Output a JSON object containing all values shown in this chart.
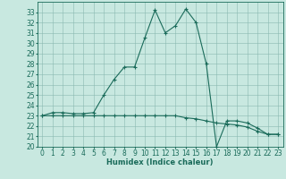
{
  "xlabel": "Humidex (Indice chaleur)",
  "background_color": "#c8e8e0",
  "line_color": "#1a6b5a",
  "x_values": [
    0,
    1,
    2,
    3,
    4,
    5,
    6,
    7,
    8,
    9,
    10,
    11,
    12,
    13,
    14,
    15,
    16,
    17,
    18,
    19,
    20,
    21,
    22,
    23
  ],
  "y1_values": [
    23.0,
    23.3,
    23.3,
    23.2,
    23.2,
    23.3,
    25.0,
    26.5,
    27.7,
    27.7,
    30.5,
    33.2,
    31.0,
    31.7,
    33.3,
    32.0,
    28.0,
    20.0,
    22.5,
    22.5,
    22.3,
    21.8,
    21.2,
    21.2
  ],
  "y2_values": [
    23.0,
    23.0,
    23.0,
    23.0,
    23.0,
    23.0,
    23.0,
    23.0,
    23.0,
    23.0,
    23.0,
    23.0,
    23.0,
    23.0,
    22.8,
    22.7,
    22.5,
    22.3,
    22.2,
    22.1,
    21.9,
    21.5,
    21.2,
    21.2
  ],
  "ylim": [
    20,
    34
  ],
  "xlim": [
    -0.5,
    23.5
  ],
  "yticks": [
    20,
    21,
    22,
    23,
    24,
    25,
    26,
    27,
    28,
    29,
    30,
    31,
    32,
    33
  ],
  "xticks": [
    0,
    1,
    2,
    3,
    4,
    5,
    6,
    7,
    8,
    9,
    10,
    11,
    12,
    13,
    14,
    15,
    16,
    17,
    18,
    19,
    20,
    21,
    22,
    23
  ],
  "grid_color": "#8ab8b0",
  "marker": "+",
  "markersize": 3,
  "linewidth": 0.8,
  "label_fontsize": 6,
  "tick_fontsize": 5.5
}
